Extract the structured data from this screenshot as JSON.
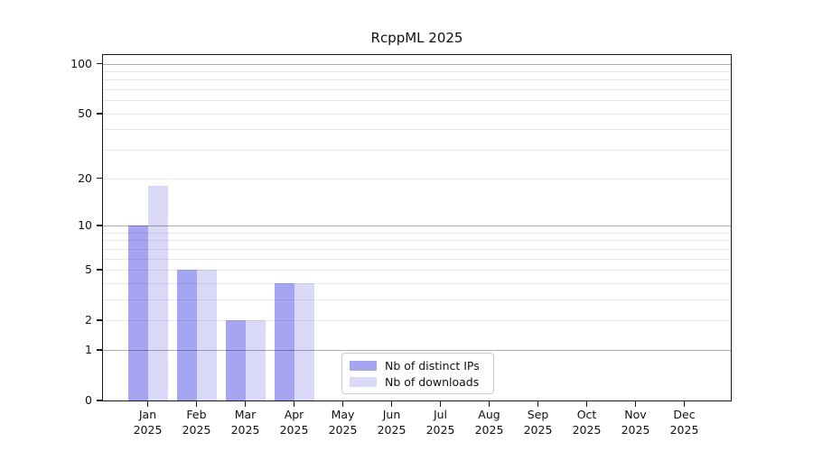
{
  "title": "RcppML 2025",
  "legend": {
    "items": [
      {
        "label": "Nb of distinct IPs",
        "color": "#a5a5f2"
      },
      {
        "label": "Nb of downloads",
        "color": "#dadaf8"
      }
    ]
  },
  "chart_data": {
    "type": "bar",
    "title": "RcppML 2025",
    "categories": [
      "Jan",
      "Feb",
      "Mar",
      "Apr",
      "May",
      "Jun",
      "Jul",
      "Aug",
      "Sep",
      "Oct",
      "Nov",
      "Dec"
    ],
    "category_year": "2025",
    "series": [
      {
        "name": "Nb of distinct IPs",
        "color": "#a5a5f2",
        "values": [
          10,
          5,
          2,
          4,
          0,
          0,
          0,
          0,
          0,
          0,
          0,
          0
        ]
      },
      {
        "name": "Nb of downloads",
        "color": "#dadaf8",
        "values": [
          18,
          5,
          2,
          4,
          0,
          0,
          0,
          0,
          0,
          0,
          0,
          0
        ]
      }
    ],
    "xlabel": "",
    "ylabel": "",
    "yscale": "log1p",
    "ylim": [
      0,
      114
    ],
    "yticks": [
      0,
      1,
      2,
      5,
      10,
      20,
      50,
      100
    ],
    "major_gridlines": [
      1,
      10,
      100
    ],
    "minor_gridlines": [
      2,
      3,
      4,
      5,
      6,
      7,
      8,
      9,
      20,
      30,
      40,
      50,
      60,
      70,
      80,
      90
    ],
    "grid": "on",
    "legend_position": "lower center inside"
  }
}
